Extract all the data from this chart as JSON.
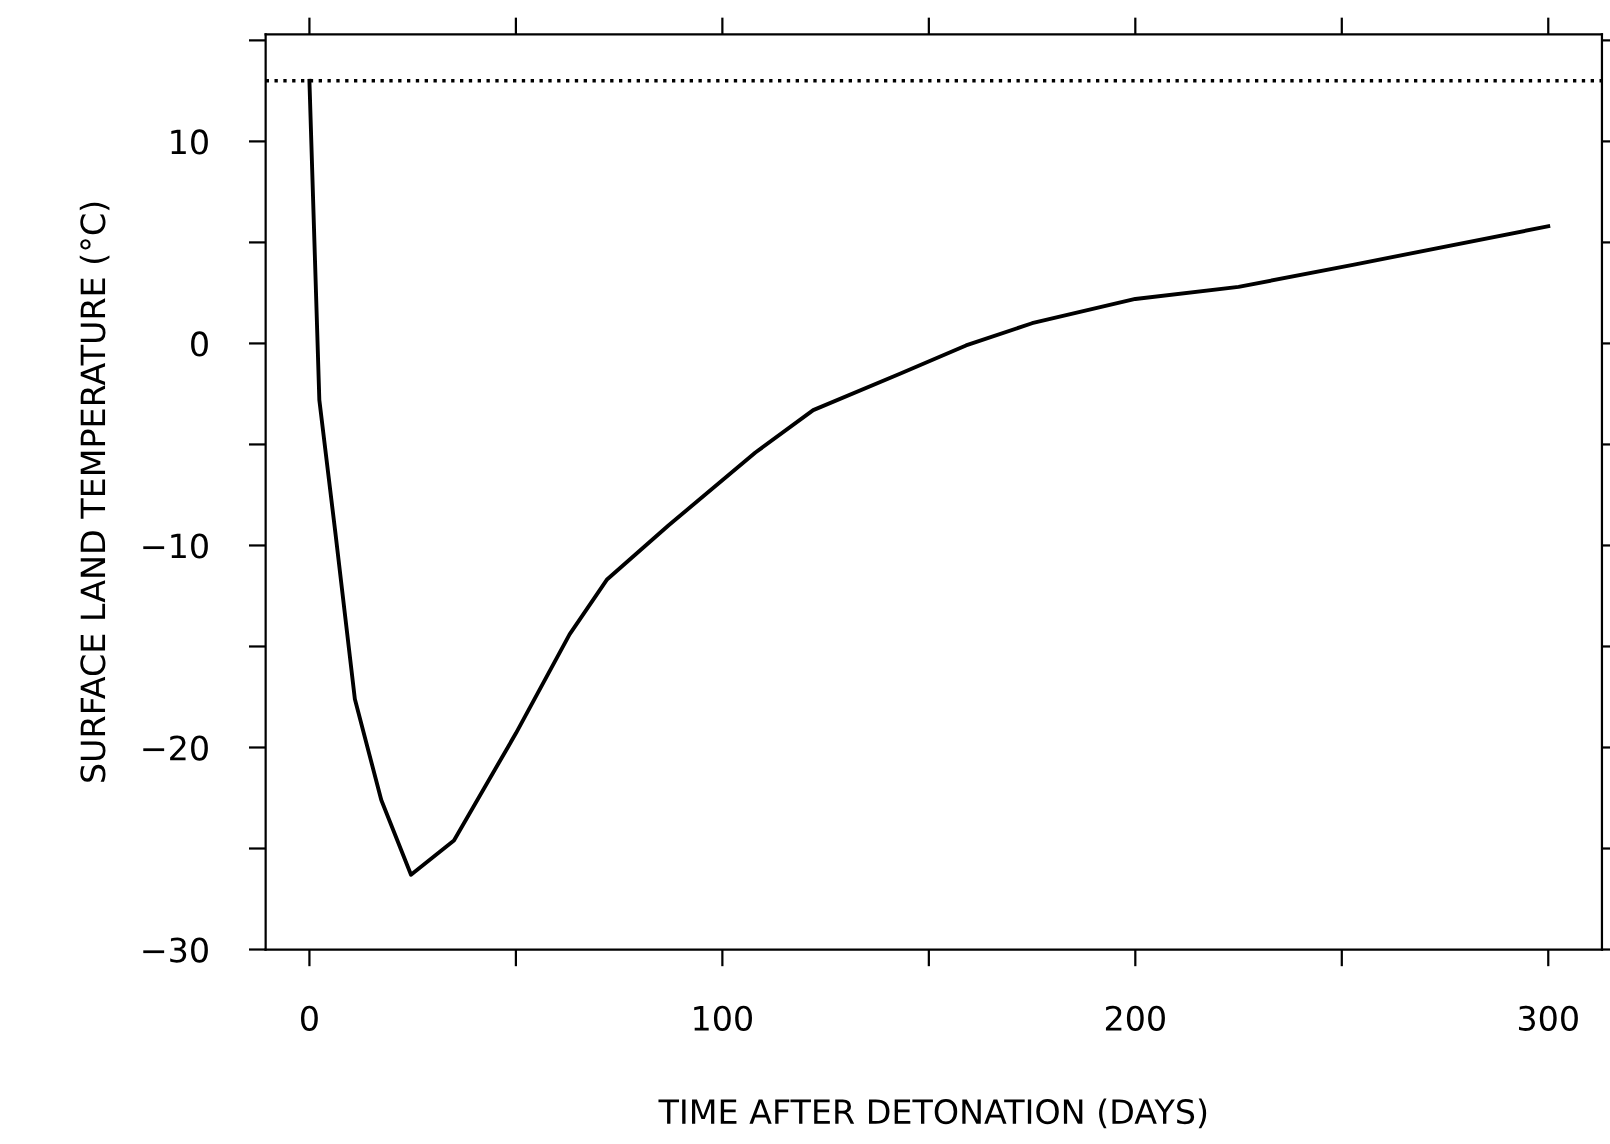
{
  "chart_data": {
    "type": "line",
    "xlabel": "TIME AFTER DETONATION (DAYS)",
    "ylabel": "SURFACE LAND TEMPERATURE (°C)",
    "x": [
      0,
      2.4,
      6.3,
      11,
      17.4,
      24.6,
      35,
      50,
      63,
      72,
      87,
      108,
      122,
      143,
      159,
      175,
      200,
      225,
      253,
      300
    ],
    "series": [
      {
        "color": "#000000",
        "values": [
          13,
          -2.8,
          -9.4,
          -17.6,
          -22.6,
          -26.3,
          -24.6,
          -19.3,
          -14.4,
          -11.7,
          -9.0,
          -5.4,
          -3.3,
          -1.5,
          -0.1,
          1.0,
          2.2,
          2.8,
          3.9,
          5.8
        ]
      }
    ],
    "xlim": [
      -10.6,
      313
    ],
    "ylim": [
      -30,
      15.3
    ],
    "xticks": [
      0,
      {
        "value": 50,
        "label": null
      },
      100,
      {
        "value": 150,
        "label": null
      },
      200,
      {
        "value": 250,
        "label": null
      },
      300
    ],
    "yticks": [
      {
        "value": -30,
        "label": "−30"
      },
      {
        "value": -25,
        "label": null
      },
      {
        "value": -20,
        "label": "−20"
      },
      {
        "value": -15,
        "label": null
      },
      {
        "value": -10,
        "label": "−10"
      },
      {
        "value": -5,
        "label": null
      },
      0,
      {
        "value": 5,
        "label": null
      },
      10,
      {
        "value": 15,
        "label": null
      }
    ],
    "ref_lines": [
      {
        "axis": "y",
        "value": 13,
        "line_style": "dotted",
        "color": "#000000"
      }
    ],
    "grid": false,
    "legend": false,
    "marker": "none",
    "line_style": "solid"
  }
}
